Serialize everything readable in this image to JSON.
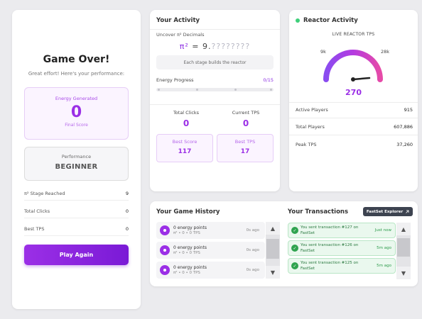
{
  "game_over": {
    "title": "Game Over!",
    "subtitle": "Great effort! Here's your performance:",
    "energy_label": "Energy Generated",
    "energy_value": "0",
    "energy_footer": "Final Score",
    "performance_label": "Performance",
    "performance_value": "BEGINNER",
    "stats": [
      {
        "label": "π² Stage Reached",
        "value": "9"
      },
      {
        "label": "Total Clicks",
        "value": "0"
      },
      {
        "label": "Best TPS",
        "value": "0"
      }
    ],
    "play_again_label": "Play Again"
  },
  "activity": {
    "title": "Your Activity",
    "uncover_label": "Uncover π² Decimals",
    "pi_symbol": "π²",
    "pi_equals": " = 9.",
    "pi_hidden": "????????",
    "stage_note": "Each stage builds the reactor",
    "energy_progress_label": "Energy Progress",
    "energy_progress_value": "0/15",
    "energy_progress_fraction": 0,
    "total_clicks_label": "Total Clicks",
    "total_clicks_value": "0",
    "current_tps_label": "Current TPS",
    "current_tps_value": "0",
    "best_score_label": "Best Score",
    "best_score_value": "117",
    "best_tps_label": "Best TPS",
    "best_tps_value": "17"
  },
  "reactor": {
    "title": "Reactor Activity",
    "live_label": "LIVE REACTOR TPS",
    "gauge_left_label": "9k",
    "gauge_right_label": "28k",
    "gauge_value": "270",
    "rows": [
      {
        "label": "Active Players",
        "value": "915"
      },
      {
        "label": "Total Players",
        "value": "607,886"
      },
      {
        "label": "Peak TPS",
        "value": "37,260"
      }
    ],
    "colors": {
      "status": "#3ecf7a",
      "accent": "#9b2fe6"
    }
  },
  "history": {
    "title": "Your Game History",
    "items": [
      {
        "line1": "0 energy points",
        "line2": "π² • 0 • 0 TPS",
        "time": "0s ago"
      },
      {
        "line1": "0 energy points",
        "line2": "π² • 0 • 0 TPS",
        "time": "0s ago"
      },
      {
        "line1": "0 energy points",
        "line2": "π² • 0 • 0 TPS",
        "time": "0s ago"
      }
    ]
  },
  "transactions": {
    "title": "Your Transactions",
    "explorer_label": "FastSet Explorer",
    "items": [
      {
        "line1": "You sent transaction #127 on",
        "line2": "FastSet",
        "time": "Just now"
      },
      {
        "line1": "You sent transaction #126 on",
        "line2": "FastSet",
        "time": "5m ago"
      },
      {
        "line1": "You sent transaction #125 on",
        "line2": "FastSet",
        "time": "5m ago"
      }
    ]
  },
  "scroll_arrows": {
    "up": "▲",
    "down": "▼"
  }
}
